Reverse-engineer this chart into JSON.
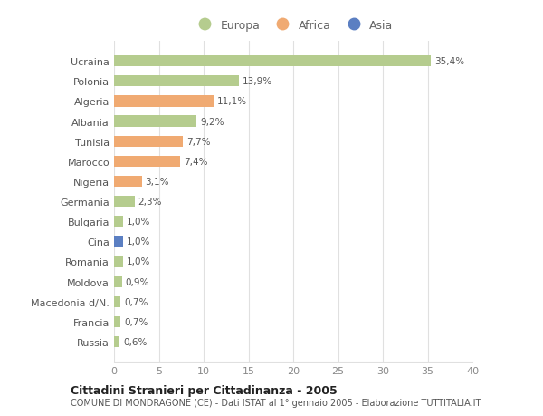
{
  "countries": [
    "Ucraina",
    "Polonia",
    "Algeria",
    "Albania",
    "Tunisia",
    "Marocco",
    "Nigeria",
    "Germania",
    "Bulgaria",
    "Cina",
    "Romania",
    "Moldova",
    "Macedonia d/N.",
    "Francia",
    "Russia"
  ],
  "values": [
    35.4,
    13.9,
    11.1,
    9.2,
    7.7,
    7.4,
    3.1,
    2.3,
    1.0,
    1.0,
    1.0,
    0.9,
    0.7,
    0.7,
    0.6
  ],
  "labels": [
    "35,4%",
    "13,9%",
    "11,1%",
    "9,2%",
    "7,7%",
    "7,4%",
    "3,1%",
    "2,3%",
    "1,0%",
    "1,0%",
    "1,0%",
    "0,9%",
    "0,7%",
    "0,7%",
    "0,6%"
  ],
  "continents": [
    "Europa",
    "Europa",
    "Africa",
    "Europa",
    "Africa",
    "Africa",
    "Africa",
    "Europa",
    "Europa",
    "Asia",
    "Europa",
    "Europa",
    "Europa",
    "Europa",
    "Europa"
  ],
  "colors": {
    "Europa": "#b5cc8e",
    "Africa": "#f0aa72",
    "Asia": "#5b7fc2"
  },
  "xlim": [
    0,
    40
  ],
  "xticks": [
    0,
    5,
    10,
    15,
    20,
    25,
    30,
    35,
    40
  ],
  "title": "Cittadini Stranieri per Cittadinanza - 2005",
  "subtitle": "COMUNE DI MONDRAGONE (CE) - Dati ISTAT al 1° gennaio 2005 - Elaborazione TUTTITALIA.IT",
  "background_color": "#ffffff",
  "grid_color": "#e0e0e0"
}
